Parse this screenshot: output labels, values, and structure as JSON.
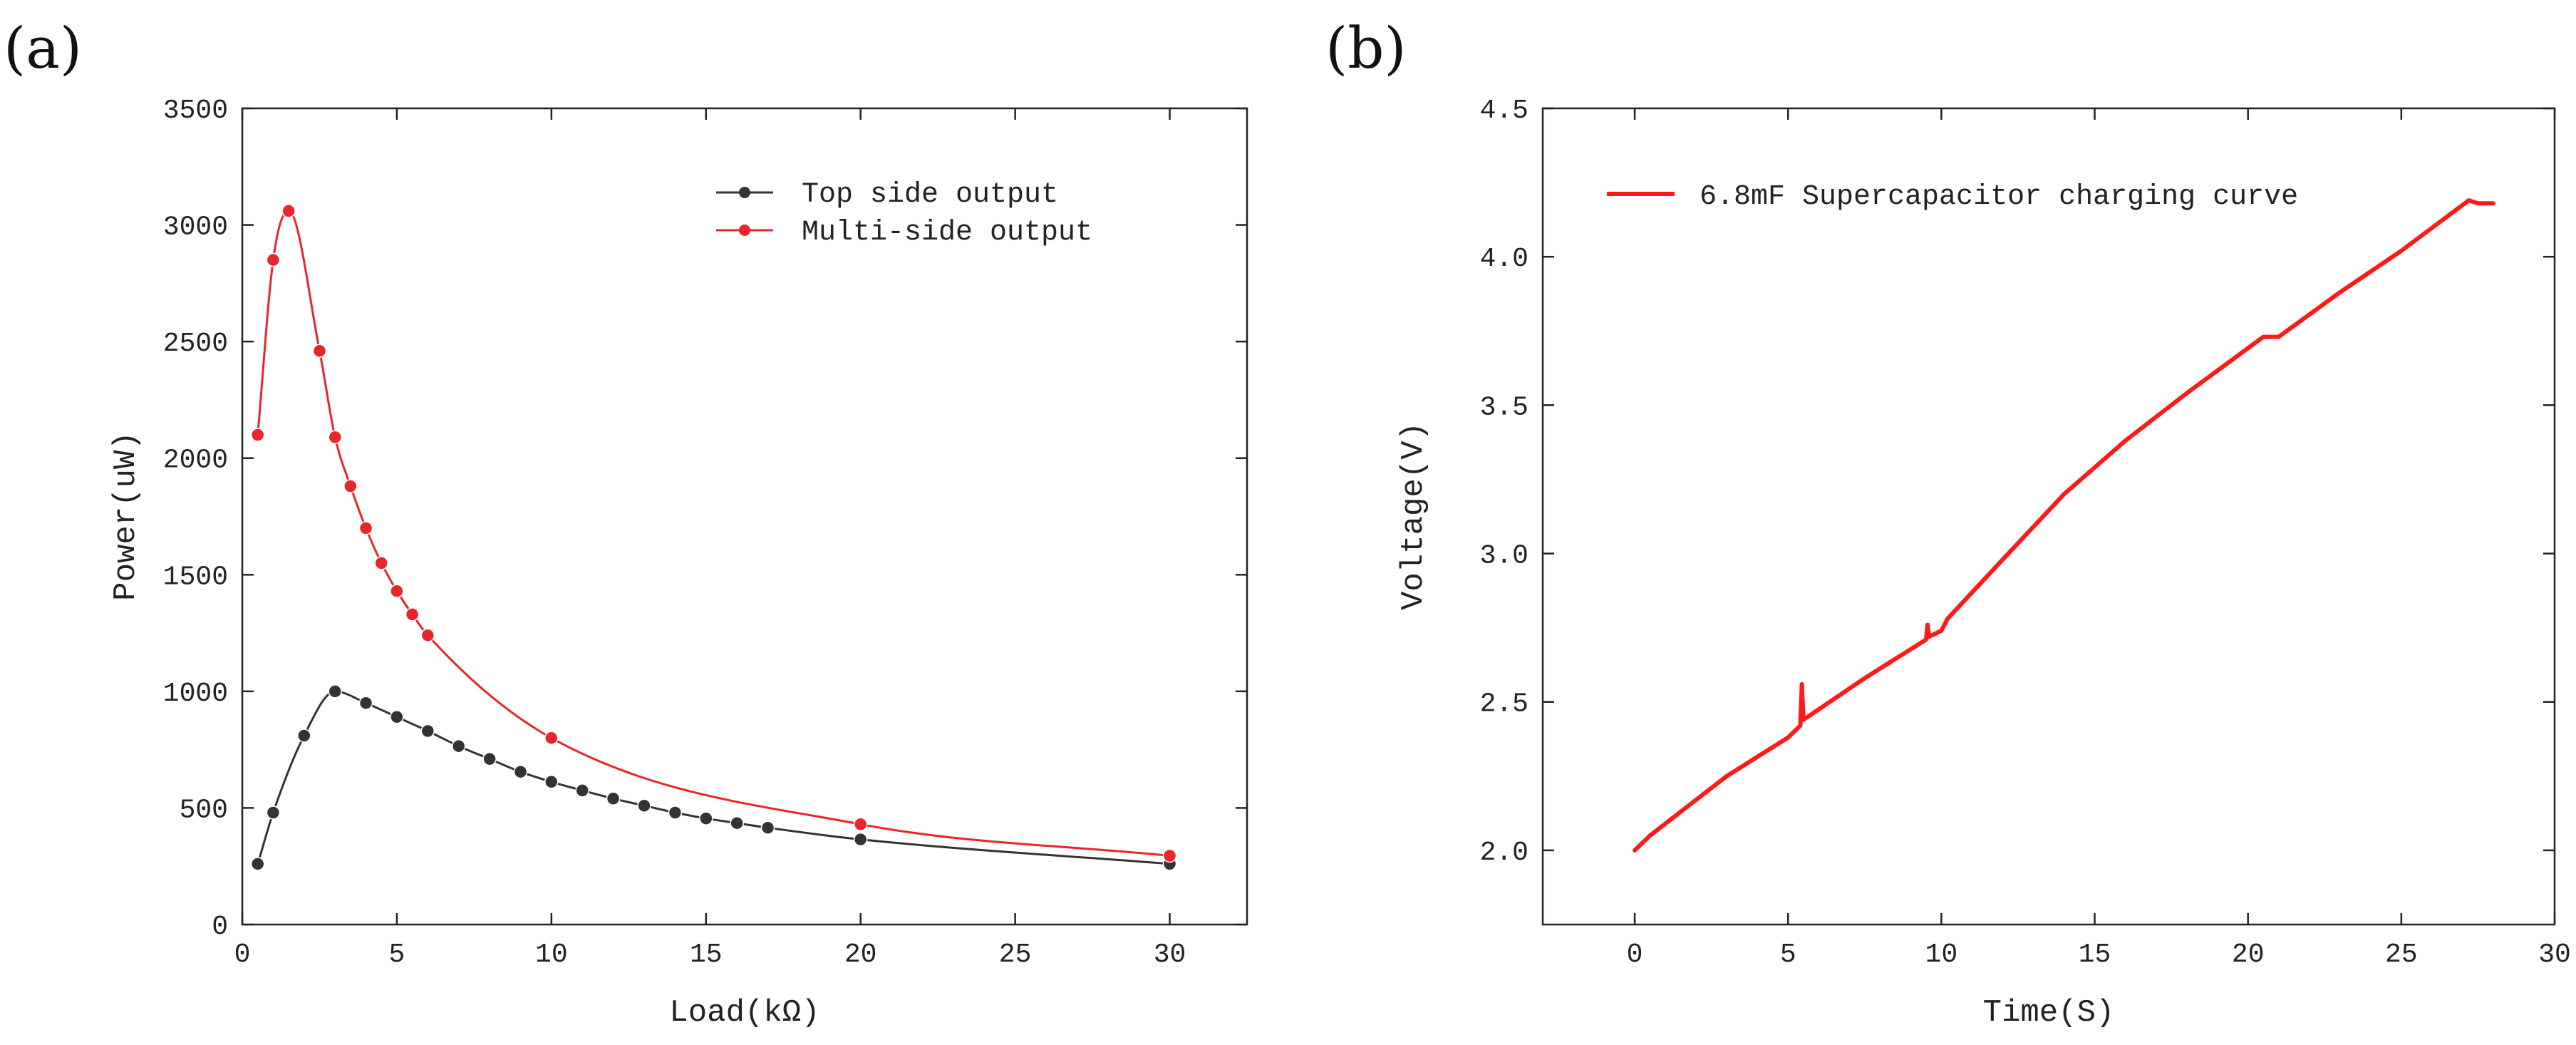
{
  "panels": {
    "a": {
      "label": "(a)"
    },
    "b": {
      "label": "(b)"
    }
  },
  "chart_data": [
    {
      "type": "line",
      "title": "",
      "xlabel": "Load(kΩ)",
      "ylabel": "Power(uW)",
      "xlim": [
        0,
        32.5
      ],
      "ylim": [
        0,
        3500
      ],
      "xticks": [
        0,
        5,
        10,
        15,
        20,
        25,
        30
      ],
      "yticks": [
        0,
        500,
        1000,
        1500,
        2000,
        2500,
        3000,
        3500
      ],
      "legend_position": "top-right",
      "series": [
        {
          "name": "Top side output",
          "color": "#333333",
          "x": [
            0.5,
            1,
            2,
            3,
            4,
            5,
            6,
            7,
            8,
            9,
            10,
            11,
            12,
            13,
            14,
            15,
            16,
            17,
            20,
            30
          ],
          "values": [
            260,
            480,
            810,
            1000,
            950,
            890,
            830,
            765,
            710,
            655,
            612,
            575,
            540,
            510,
            480,
            455,
            435,
            415,
            365,
            260
          ]
        },
        {
          "name": "Multi-side output",
          "color": "#e8262a",
          "x": [
            0.5,
            1,
            1.5,
            2.5,
            3,
            3.5,
            4,
            4.5,
            5,
            5.5,
            6,
            10,
            20,
            30
          ],
          "values": [
            2100,
            2850,
            3060,
            2460,
            2090,
            1880,
            1700,
            1550,
            1430,
            1330,
            1240,
            800,
            430,
            295
          ]
        }
      ]
    },
    {
      "type": "line",
      "title": "",
      "xlabel": "Time(S)",
      "ylabel": "Voltage(V)",
      "xlim": [
        -3,
        30
      ],
      "ylim": [
        1.75,
        4.5
      ],
      "xticks": [
        0,
        5,
        10,
        15,
        20,
        25,
        30
      ],
      "yticks": [
        2.0,
        2.5,
        3.0,
        3.5,
        4.0,
        4.5
      ],
      "legend_position": "top-left",
      "series": [
        {
          "name": "6.8mF Supercapacitor charging curve",
          "color": "#ff1a1a",
          "x": [
            0,
            0.5,
            1.5,
            3,
            5,
            5.4,
            5.45,
            5.5,
            7.5,
            9.5,
            9.55,
            9.6,
            10,
            10.2,
            12,
            14,
            16,
            18,
            20.5,
            21,
            23,
            25,
            27.2,
            27.5,
            28
          ],
          "values": [
            2.0,
            2.05,
            2.13,
            2.25,
            2.38,
            2.42,
            2.56,
            2.44,
            2.58,
            2.71,
            2.76,
            2.72,
            2.74,
            2.78,
            2.98,
            3.2,
            3.38,
            3.54,
            3.73,
            3.73,
            3.88,
            4.02,
            4.19,
            4.18,
            4.18
          ]
        }
      ]
    }
  ]
}
